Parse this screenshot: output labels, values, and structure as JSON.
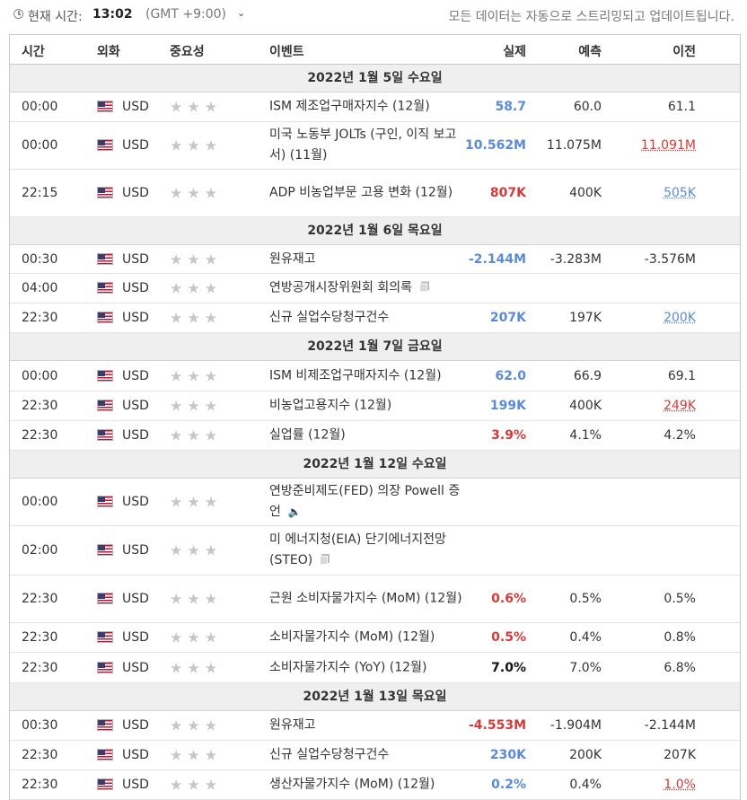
{
  "topbar": {
    "now_label": "현재 시간:",
    "now_time": "13:02",
    "timezone": "(GMT +9:00)",
    "tz_caret": "⌄",
    "stream_note": "모든 데이터는 자동으로 스트리밍되고 업데이트됩니다."
  },
  "headers": {
    "time": "시간",
    "currency": "외화",
    "importance": "중요성",
    "event": "이벤트",
    "actual": "실제",
    "forecast": "예측",
    "previous": "이전"
  },
  "stars": "★★★",
  "colors": {
    "blue": "#5b8ad6",
    "red": "#d33a3a",
    "day_bg": "#efefef"
  },
  "days": [
    {
      "label": "2022년 1월 5일 수요일",
      "rows": [
        {
          "time": "00:00",
          "cur": "USD",
          "event": "ISM 제조업구매자지수 (12월)",
          "actual": "58.7",
          "forecast": "60.0",
          "previous": "61.1"
        },
        {
          "time": "00:00",
          "cur": "USD",
          "event": "미국 노동부 JOLTs (구인, 이직 보고서) (11월)",
          "actual": "10.562M",
          "forecast": "11.075M",
          "previous": "11.091M"
        },
        {
          "time": "22:15",
          "cur": "USD",
          "event": "ADP 비농업부문 고용 변화 (12월)",
          "actual": "807K",
          "forecast": "400K",
          "previous": "505K"
        }
      ]
    },
    {
      "label": "2022년 1월 6일 목요일",
      "rows": [
        {
          "time": "00:30",
          "cur": "USD",
          "event": "원유재고",
          "actual": "-2.144M",
          "forecast": "-3.283M",
          "previous": "-3.576M"
        },
        {
          "time": "04:00",
          "cur": "USD",
          "event": "연방공개시장위원회 회의록",
          "actual": "",
          "forecast": "",
          "previous": ""
        },
        {
          "time": "22:30",
          "cur": "USD",
          "event": "신규 실업수당청구건수",
          "actual": "207K",
          "forecast": "197K",
          "previous": "200K"
        }
      ]
    },
    {
      "label": "2022년 1월 7일 금요일",
      "rows": [
        {
          "time": "00:00",
          "cur": "USD",
          "event": "ISM 비제조업구매자지수 (12월)",
          "actual": "62.0",
          "forecast": "66.9",
          "previous": "69.1"
        },
        {
          "time": "22:30",
          "cur": "USD",
          "event": "비농업고용지수 (12월)",
          "actual": "199K",
          "forecast": "400K",
          "previous": "249K"
        },
        {
          "time": "22:30",
          "cur": "USD",
          "event": "실업률 (12월)",
          "actual": "3.9%",
          "forecast": "4.1%",
          "previous": "4.2%"
        }
      ]
    },
    {
      "label": "2022년 1월 12일 수요일",
      "rows": [
        {
          "time": "00:00",
          "cur": "USD",
          "event": "연방준비제도(FED) 의장 Powell 증언",
          "actual": "",
          "forecast": "",
          "previous": ""
        },
        {
          "time": "02:00",
          "cur": "USD",
          "event": "미 에너지청(EIA) 단기에너지전망(STEO)",
          "actual": "",
          "forecast": "",
          "previous": ""
        },
        {
          "time": "22:30",
          "cur": "USD",
          "event": "근원 소비자물가지수 (MoM) (12월)",
          "actual": "0.6%",
          "forecast": "0.5%",
          "previous": "0.5%"
        },
        {
          "time": "22:30",
          "cur": "USD",
          "event": "소비자물가지수 (MoM) (12월)",
          "actual": "0.5%",
          "forecast": "0.4%",
          "previous": "0.8%"
        },
        {
          "time": "22:30",
          "cur": "USD",
          "event": "소비자물가지수 (YoY) (12월)",
          "actual": "7.0%",
          "forecast": "7.0%",
          "previous": "6.8%"
        }
      ]
    },
    {
      "label": "2022년 1월 13일 목요일",
      "rows": [
        {
          "time": "00:30",
          "cur": "USD",
          "event": "원유재고",
          "actual": "-4.553M",
          "forecast": "-1.904M",
          "previous": "-2.144M"
        },
        {
          "time": "22:30",
          "cur": "USD",
          "event": "신규 실업수당청구건수",
          "actual": "230K",
          "forecast": "200K",
          "previous": "207K"
        },
        {
          "time": "22:30",
          "cur": "USD",
          "event": "생산자물가지수 (MoM) (12월)",
          "actual": "0.2%",
          "forecast": "0.4%",
          "previous": "1.0%"
        }
      ]
    }
  ]
}
